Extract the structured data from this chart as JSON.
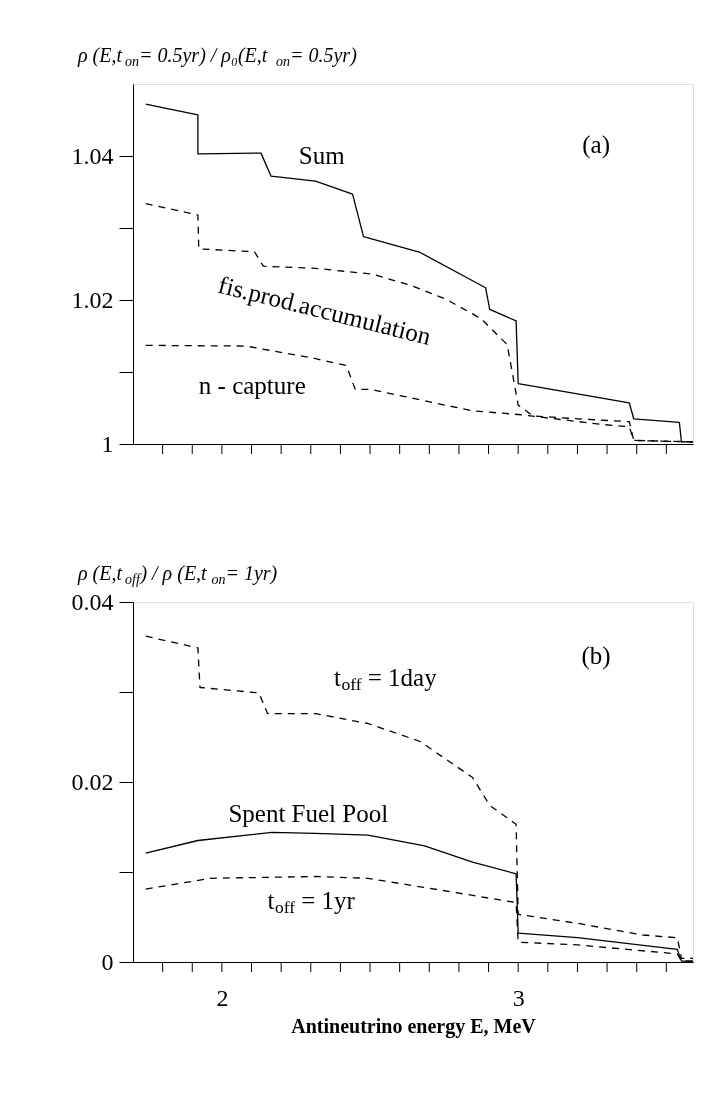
{
  "chart_data": [
    {
      "type": "line",
      "ylabel": "ρ (E,t$_{on}$= 0.5yr) / ρ₀(E,t$_{on}$= 0.5yr)",
      "xlim": [
        1.7,
        3.59
      ],
      "ylim": [
        1,
        1.05
      ],
      "xticks": [
        {
          "value": 1.8,
          "label": null
        },
        {
          "value": 1.9,
          "label": null
        },
        {
          "value": 2,
          "label": null
        },
        {
          "value": 2.1,
          "label": null
        },
        {
          "value": 2.2,
          "label": null
        },
        {
          "value": 2.3,
          "label": null
        },
        {
          "value": 2.4,
          "label": null
        },
        {
          "value": 2.5,
          "label": null
        },
        {
          "value": 2.6,
          "label": null
        },
        {
          "value": 2.7,
          "label": null
        },
        {
          "value": 2.8,
          "label": null
        },
        {
          "value": 2.9,
          "label": null
        },
        {
          "value": 3,
          "label": null
        },
        {
          "value": 3.1,
          "label": null
        },
        {
          "value": 3.2,
          "label": null
        },
        {
          "value": 3.3,
          "label": null
        },
        {
          "value": 3.4,
          "label": null
        },
        {
          "value": 3.5,
          "label": null
        }
      ],
      "yticks": [
        1,
        {
          "value": 1.01,
          "label": null
        },
        1.02,
        {
          "value": 1.03,
          "label": null
        },
        1.04
      ],
      "tick_labels": "y",
      "grid": false,
      "series": [
        {
          "color": "#000000",
          "line_style": "solid",
          "x": [
            1.743,
            1.919,
            1.919,
            2.132,
            2.166,
            2.316,
            2.441,
            2.478,
            2.669,
            2.89,
            2.904,
            2.993,
            3.0,
            3.375,
            3.39,
            3.544,
            3.551,
            3.59
          ],
          "values": [
            1.0472,
            1.0457,
            1.0403,
            1.0404,
            1.0372,
            1.0365,
            1.0347,
            1.0288,
            1.0266,
            1.0217,
            1.0187,
            1.0171,
            1.0084,
            1.0057,
            1.0035,
            1.003,
            1.0003,
            1.0003
          ]
        },
        {
          "color": "#000000",
          "line_style": "dashed",
          "x": [
            1.743,
            1.919,
            1.922,
            2.11,
            2.14,
            2.316,
            2.507,
            2.64,
            2.757,
            2.875,
            2.963,
            3.0,
            3.05,
            3.2,
            3.375,
            3.39,
            3.59
          ],
          "values": [
            1.0334,
            1.0318,
            1.0271,
            1.0267,
            1.0247,
            1.0244,
            1.0236,
            1.022,
            1.0201,
            1.0174,
            1.0138,
            1.0054,
            1.0039,
            1.0035,
            1.0031,
            1.0005,
            1.0003
          ]
        },
        {
          "color": "#000000",
          "line_style": "dashed",
          "x": [
            1.743,
            2.081,
            2.3,
            2.42,
            2.45,
            2.5,
            2.846,
            3.0,
            3.287,
            3.375,
            3.39,
            3.478,
            3.59
          ],
          "values": [
            1.0137,
            1.0136,
            1.012,
            1.0109,
            1.0076,
            1.0076,
            1.0046,
            1.0041,
            1.0027,
            1.0024,
            1.0005,
            1.0004,
            1.0003
          ]
        }
      ],
      "annotations": [
        "Sum",
        "fis.prod.accumulation",
        "n - capture",
        "(a)"
      ]
    },
    {
      "type": "line",
      "ylabel": "ρ (E,t$_{off}$) / ρ (E,t$_{on}$= 1yr)",
      "xlabel": "Antineutrino energy E, MeV",
      "xlim": [
        1.7,
        3.59
      ],
      "ylim": [
        0,
        0.04
      ],
      "xticks": [
        {
          "value": 1.8,
          "label": null
        },
        {
          "value": 1.9,
          "label": null
        },
        2,
        {
          "value": 2.1,
          "label": null
        },
        {
          "value": 2.2,
          "label": null
        },
        {
          "value": 2.3,
          "label": null
        },
        {
          "value": 2.4,
          "label": null
        },
        {
          "value": 2.5,
          "label": null
        },
        {
          "value": 2.6,
          "label": null
        },
        {
          "value": 2.7,
          "label": null
        },
        {
          "value": 2.8,
          "label": null
        },
        {
          "value": 2.9,
          "label": null
        },
        3,
        {
          "value": 3.1,
          "label": null
        },
        {
          "value": 3.2,
          "label": null
        },
        {
          "value": 3.3,
          "label": null
        },
        {
          "value": 3.4,
          "label": null
        },
        {
          "value": 3.5,
          "label": null
        }
      ],
      "yticks": [
        0,
        {
          "value": 0.01,
          "label": null
        },
        0.02,
        {
          "value": 0.03,
          "label": null
        },
        0.04
      ],
      "grid": false,
      "series": [
        {
          "color": "#000000",
          "line_style": "dashed",
          "x": [
            1.743,
            1.919,
            1.926,
            2.125,
            2.154,
            2.316,
            2.493,
            2.669,
            2.846,
            2.904,
            2.993,
            3.0,
            3.2,
            3.42,
            3.537,
            3.551,
            3.59
          ],
          "values": [
            0.0362,
            0.0349,
            0.0305,
            0.0299,
            0.0276,
            0.0276,
            0.0265,
            0.0245,
            0.0205,
            0.0174,
            0.0153,
            0.0053,
            0.0043,
            0.003,
            0.0027,
            0.0004,
            0.0004
          ]
        },
        {
          "color": "#000000",
          "line_style": "solid",
          "x": [
            1.743,
            1.919,
            2.169,
            2.316,
            2.493,
            2.684,
            2.846,
            2.993,
            3.0,
            3.2,
            3.537,
            3.551,
            3.59
          ],
          "values": [
            0.0121,
            0.0135,
            0.0144,
            0.0143,
            0.0141,
            0.0129,
            0.0111,
            0.0098,
            0.0032,
            0.0027,
            0.0014,
            0.0001,
            0.0001
          ]
        },
        {
          "color": "#000000",
          "line_style": "dashed",
          "x": [
            1.743,
            1.963,
            2.316,
            2.493,
            2.699,
            2.846,
            2.993,
            3.0,
            3.2,
            3.537,
            3.551,
            3.59
          ],
          "values": [
            0.0081,
            0.0093,
            0.0095,
            0.0093,
            0.0082,
            0.0074,
            0.0066,
            0.0022,
            0.0019,
            0.0009,
            0.0001,
            0.0001
          ]
        }
      ],
      "annotations": [
        "t$_{off}$ = 1day",
        "Spent Fuel Pool",
        "t$_{off}$ = 1yr",
        "(b)"
      ]
    }
  ]
}
